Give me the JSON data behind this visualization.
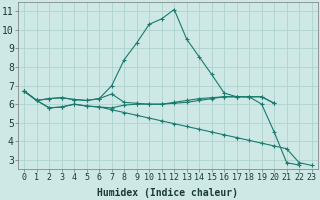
{
  "background_color": "#cde8e5",
  "grid_color": "#aacfcc",
  "line_color": "#1a7a6e",
  "xlabel": "Humidex (Indice chaleur)",
  "xlabel_fontsize": 7,
  "tick_fontsize": 6,
  "xlim": [
    -0.5,
    23.5
  ],
  "ylim": [
    2.5,
    11.5
  ],
  "yticks": [
    3,
    4,
    5,
    6,
    7,
    8,
    9,
    10,
    11
  ],
  "xticks": [
    0,
    1,
    2,
    3,
    4,
    5,
    6,
    7,
    8,
    9,
    10,
    11,
    12,
    13,
    14,
    15,
    16,
    17,
    18,
    19,
    20,
    21,
    22,
    23
  ],
  "line1_y": [
    6.7,
    6.2,
    6.3,
    6.35,
    6.25,
    6.2,
    6.3,
    7.0,
    8.4,
    9.3,
    10.3,
    10.6,
    11.1,
    9.5,
    8.55,
    7.6,
    6.6,
    6.4,
    6.4,
    6.0,
    4.5,
    2.85,
    2.72,
    null
  ],
  "line2_y": [
    6.7,
    6.2,
    6.3,
    6.35,
    6.25,
    6.2,
    6.3,
    6.55,
    6.1,
    6.05,
    6.0,
    6.0,
    6.1,
    6.2,
    6.3,
    6.35,
    6.4,
    6.4,
    6.4,
    6.4,
    6.05,
    null,
    null,
    null
  ],
  "line3_y": [
    6.7,
    6.2,
    5.8,
    5.85,
    6.0,
    5.9,
    5.85,
    5.7,
    5.55,
    5.4,
    5.25,
    5.1,
    4.95,
    4.8,
    4.65,
    4.5,
    4.35,
    4.2,
    4.05,
    3.9,
    3.75,
    3.6,
    2.85,
    2.7
  ],
  "line4_y": [
    6.7,
    6.2,
    5.8,
    5.85,
    6.0,
    5.9,
    5.85,
    5.8,
    5.95,
    6.0,
    6.0,
    6.0,
    6.05,
    6.1,
    6.2,
    6.3,
    6.4,
    6.4,
    6.4,
    6.4,
    6.05,
    null,
    null,
    null
  ]
}
